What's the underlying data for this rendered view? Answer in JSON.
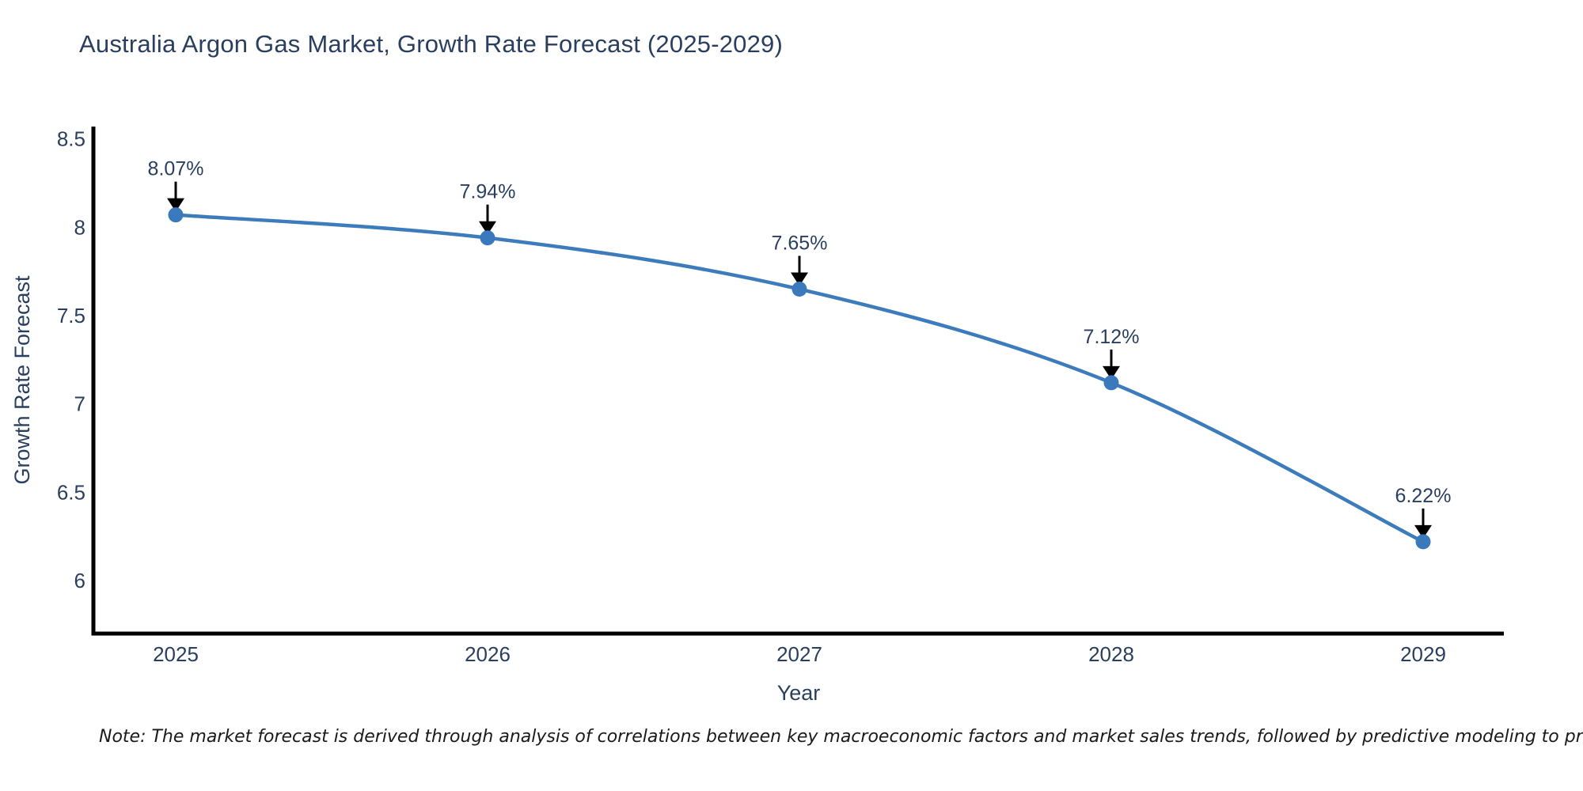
{
  "page": {
    "title": "Australia Argon Gas Market, Growth Rate Forecast (2025-2029)",
    "note": "Note: The market forecast is derived through analysis of correlations between key macroeconomic factors and market sales trends, followed by predictive modeling to project future sales"
  },
  "chart_data": {
    "type": "line",
    "line_shape": "spline",
    "title": "Australia Argon Gas Market, Growth Rate Forecast (2025-2029)",
    "xlabel": "Year",
    "ylabel": "Growth Rate Forecast",
    "categories": [
      "2025",
      "2026",
      "2027",
      "2028",
      "2029"
    ],
    "series": [
      {
        "name": "Growth Rate Forecast",
        "values": [
          8.07,
          7.94,
          7.65,
          7.12,
          6.22
        ]
      }
    ],
    "point_labels": [
      "8.07%",
      "7.94%",
      "7.65%",
      "7.12%",
      "6.22%"
    ],
    "yticks": [
      8.5,
      8,
      7.5,
      7,
      6.5,
      6
    ],
    "ylim": [
      5.7,
      8.57
    ],
    "grid": false,
    "legend_position": "none",
    "annotations": "black downward arrows from each value label to its data point",
    "colors": {
      "line": "#3c7bbc",
      "marker": "#3a79bc",
      "axis": "#000000",
      "text": "#2a3f5f",
      "annotation_arrow": "#000000",
      "note_text": "#1a1a1a",
      "background": "#ffffff"
    }
  }
}
